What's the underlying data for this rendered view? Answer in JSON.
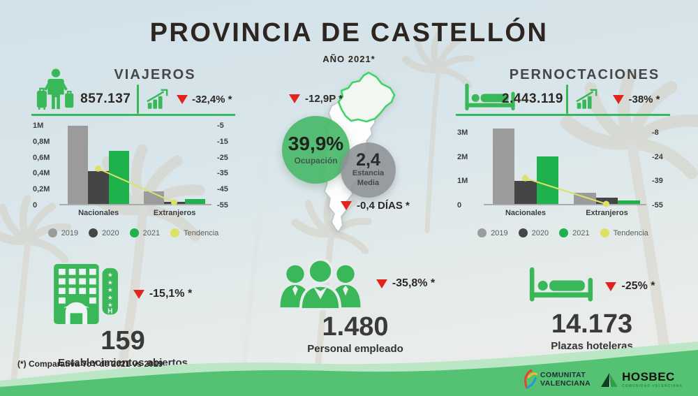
{
  "title": "PROVINCIA DE CASTELLÓN",
  "subtitle": "AÑO 2021*",
  "footnote": "(*) Comparativa YoY de 2021 vs 2019",
  "colors": {
    "accent_green": "#3ab859",
    "bar_2019": "#9b9b9b",
    "bar_2020": "#454545",
    "bar_2021": "#1fb14c",
    "tendencia": "#dce267",
    "alert_red": "#e0261c",
    "wave_light": "#bce7c6",
    "wave_dark": "#55c173",
    "title_dark": "#2d2520"
  },
  "icons": {
    "traveler": "person-with-two-suitcases",
    "bed": "hotel-bed",
    "trend": "bar-chart-with-up-arrow",
    "down_triangle": "red-triangle-down",
    "hotel": "hotel-building-with-stars",
    "staff": "three-people-group",
    "map": "comunitat-valenciana-map-castellon-highlighted"
  },
  "viajeros": {
    "title": "VIAJEROS",
    "value": "857.137",
    "delta": "-32,4% *"
  },
  "pernoctaciones": {
    "title": "PERNOCTACIONES",
    "value": "2.443.119",
    "delta": "-38% *"
  },
  "center": {
    "ocupacion": {
      "value": "39,9%",
      "label": "Ocupación",
      "delta": "-12,9P *"
    },
    "estancia": {
      "value": "2,4",
      "label_line1": "Estancia",
      "label_line2": "Media",
      "delta": "-0,4 DÍAS *"
    }
  },
  "stats": {
    "establecimientos": {
      "value": "159",
      "label": "Establecimientos abiertos",
      "delta": "-15,1% *"
    },
    "personal": {
      "value": "1.480",
      "label": "Personal empleado",
      "delta": "-35,8% *"
    },
    "plazas": {
      "value": "14.173",
      "label": "Plazas hoteleras",
      "delta": "-25% *"
    }
  },
  "logos": {
    "comunitat": {
      "line1": "COMUNITAT",
      "line2": "VALENCIANA"
    },
    "hosbec": {
      "name": "HOSBEC",
      "sub": "COMUNIDAD VALENCIANA"
    }
  },
  "chart_data": [
    {
      "id": "viajeros_chart",
      "type": "bar",
      "title": "VIAJEROS",
      "categories": [
        "Nacionales",
        "Extranjeros"
      ],
      "series": [
        {
          "name": "2019",
          "color": "#9b9b9b",
          "values": [
            1000000,
            160000
          ]
        },
        {
          "name": "2020",
          "color": "#454545",
          "values": [
            420000,
            30000
          ]
        },
        {
          "name": "2021",
          "color": "#1fb14c",
          "values": [
            680000,
            60000
          ]
        }
      ],
      "trend": {
        "name": "Tendencia",
        "color": "#dce267",
        "axis": "right",
        "values": [
          -32.4,
          -54
        ]
      },
      "left_axis": {
        "labels": [
          "1M",
          "0,8M",
          "0,6M",
          "0,4M",
          "0,2M",
          "0"
        ],
        "values": [
          1000000,
          800000,
          600000,
          400000,
          200000,
          0
        ]
      },
      "right_axis": {
        "labels": [
          "-5",
          "-15",
          "-25",
          "-35",
          "-45",
          "-55"
        ],
        "values": [
          -5,
          -15,
          -25,
          -35,
          -45,
          -55
        ]
      },
      "plot_max": 1000000,
      "grid": false,
      "legend": [
        "2019",
        "2020",
        "2021",
        "Tendencia"
      ],
      "legend_position": "bottom"
    },
    {
      "id": "pernoctaciones_chart",
      "type": "bar",
      "title": "PERNOCTACIONES",
      "categories": [
        "Nacionales",
        "Extranjeros"
      ],
      "series": [
        {
          "name": "2019",
          "color": "#9b9b9b",
          "values": [
            3170000,
            460000
          ]
        },
        {
          "name": "2020",
          "color": "#454545",
          "values": [
            970000,
            280000
          ]
        },
        {
          "name": "2021",
          "color": "#1fb14c",
          "values": [
            2000000,
            160000
          ]
        }
      ],
      "trend": {
        "name": "Tendencia",
        "color": "#dce267",
        "axis": "right",
        "values": [
          -38,
          -55
        ]
      },
      "left_axis": {
        "labels": [
          "3M",
          "2M",
          "1M",
          "0"
        ],
        "values": [
          3000000,
          2000000,
          1000000,
          0
        ]
      },
      "right_axis": {
        "labels": [
          "-8",
          "-24",
          "-39",
          "-55"
        ],
        "values": [
          -8,
          -24,
          -39,
          -55
        ]
      },
      "plot_max": 3300000,
      "grid": false,
      "legend": [
        "2019",
        "2020",
        "2021",
        "Tendencia"
      ],
      "legend_position": "bottom"
    }
  ]
}
